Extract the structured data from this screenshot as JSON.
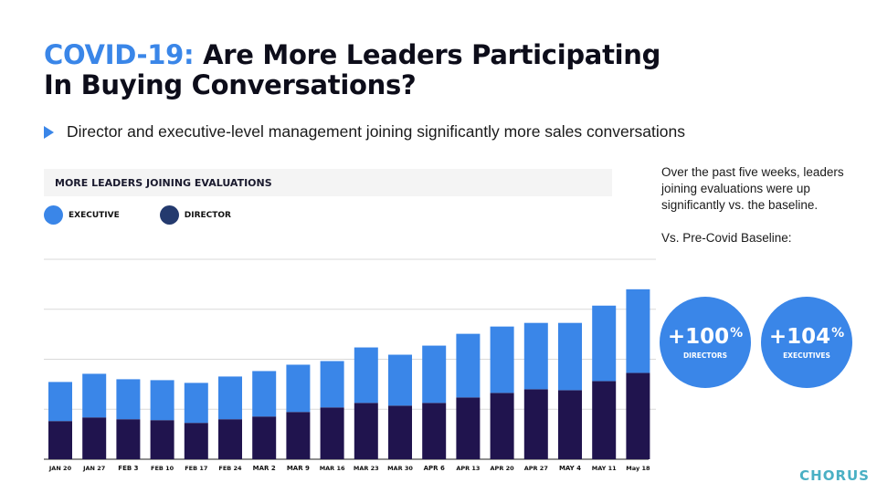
{
  "header": {
    "title_accent": "COVID-19:",
    "title_line1": " Are More Leaders Participating",
    "title_line2": "In Buying Conversations?",
    "subtitle": "Director and executive-level management joining significantly more sales conversations"
  },
  "chart_data": {
    "type": "bar",
    "stacked": true,
    "title": "MORE LEADERS JOINING EVALUATIONS",
    "categories": [
      "JAN 20",
      "JAN 27",
      "FEB 3",
      "FEB 10",
      "FEB 17",
      "FEB 24",
      "MAR 2",
      "MAR 9",
      "MAR 16",
      "MAR 23",
      "MAR 30",
      "APR 6",
      "APR 13",
      "APR 20",
      "APR 27",
      "MAY 4",
      "MAY 11",
      "May 18"
    ],
    "series": [
      {
        "name": "DIRECTOR",
        "color": "#20144e",
        "values": [
          42,
          46,
          44,
          43,
          40,
          44,
          47,
          52,
          57,
          62,
          59,
          62,
          68,
          73,
          77,
          76,
          86,
          95
        ]
      },
      {
        "name": "EXECUTIVE",
        "color": "#3a86e8",
        "values": [
          43,
          48,
          44,
          44,
          44,
          47,
          50,
          52,
          51,
          61,
          56,
          63,
          70,
          73,
          73,
          74,
          83,
          92
        ]
      }
    ],
    "ylim": [
      0,
      220
    ],
    "gridlines": [
      55,
      110,
      165,
      220
    ],
    "legend": "top-left",
    "grid": true
  },
  "side": {
    "text1": "Over the past five weeks, leaders joining evaluations were up significantly vs. the baseline.",
    "text2": "Vs. Pre-Covid Baseline:"
  },
  "stats": [
    {
      "value": "+100",
      "sup": "%",
      "label": "DIRECTORS",
      "color": "#3a86e8"
    },
    {
      "value": "+104",
      "sup": "%",
      "label": "EXECUTIVES",
      "color": "#3a86e8"
    }
  ],
  "logo": "CHORUS"
}
